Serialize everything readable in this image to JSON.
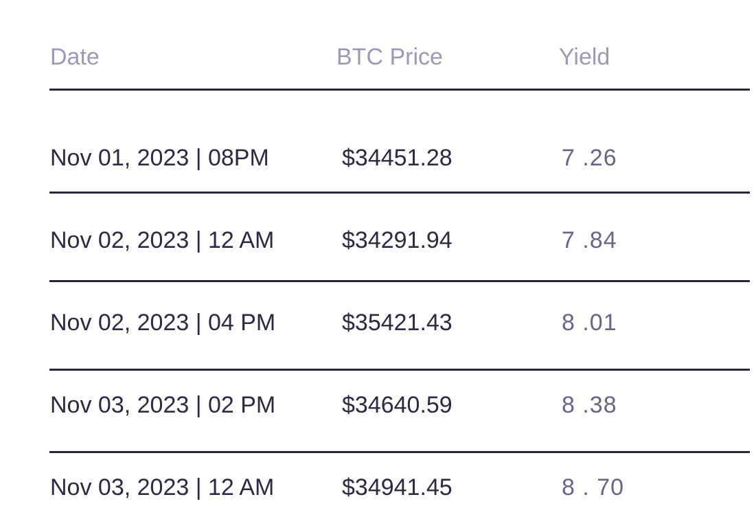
{
  "table": {
    "headers": {
      "date": "Date",
      "price": "BTC Price",
      "yield": "Yield"
    },
    "rows": [
      {
        "date": "Nov 01, 2023 | 08PM",
        "price": "$34451.28",
        "yield": "7 .26"
      },
      {
        "date": "Nov 02, 2023 | 12 AM",
        "price": "$34291.94",
        "yield": "7 .84"
      },
      {
        "date": "Nov 02, 2023 | 04 PM",
        "price": "$35421.43",
        "yield": "8 .01"
      },
      {
        "date": "Nov 03, 2023 | 02 PM",
        "price": "$34640.59",
        "yield": "8 .38"
      },
      {
        "date": "Nov 03, 2023 | 12 AM",
        "price": "$34941.45",
        "yield": "8 . 70"
      }
    ]
  },
  "colors": {
    "header_text": "#9c98b8",
    "body_text": "#2d2942",
    "yield_text": "#6a6486",
    "divider": "#2a2638"
  }
}
